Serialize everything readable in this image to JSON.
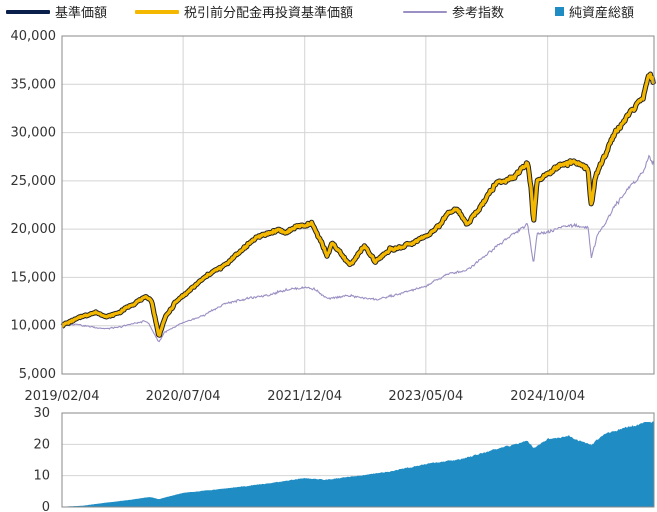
{
  "legend": {
    "base_price": "基準価額",
    "reinvested": "税引前分配金再投資基準価額",
    "reference": "参考指数",
    "net_assets": "純資産総額"
  },
  "colors": {
    "base_price": "#0b1f4d",
    "reinvested": "#f5b800",
    "reinvested_outline": "#222222",
    "reference": "#9b8fc3",
    "net_assets": "#1f8dc4",
    "grid": "#d4d4d4",
    "axis": "#888888"
  },
  "chart_data": [
    {
      "type": "line",
      "ylim": [
        5000,
        40000
      ],
      "yticks": [
        "40,000",
        "35,000",
        "30,000",
        "25,000",
        "20,000",
        "15,000",
        "10,000",
        "5,000"
      ],
      "ytick_values": [
        40000,
        35000,
        30000,
        25000,
        20000,
        15000,
        10000,
        5000
      ],
      "x_range": [
        "2019-02-04",
        "2025-12-31"
      ],
      "xticks": [
        {
          "label": "2019/02/04",
          "date": "2019-02-04"
        },
        {
          "label": "2020/07/04",
          "date": "2020-07-04"
        },
        {
          "label": "2021/12/04",
          "date": "2021-12-04"
        },
        {
          "label": "2023/05/04",
          "date": "2023-05-04"
        },
        {
          "label": "2024/10/04",
          "date": "2024-10-04"
        }
      ],
      "grid": true,
      "series": [
        {
          "name": "税引前分配金再投資基準価額",
          "points": [
            [
              "2019-02-04",
              10000
            ],
            [
              "2019-04-01",
              10700
            ],
            [
              "2019-06-01",
              11200
            ],
            [
              "2019-07-01",
              11400
            ],
            [
              "2019-08-15",
              10900
            ],
            [
              "2019-10-01",
              11300
            ],
            [
              "2019-12-01",
              12200
            ],
            [
              "2020-02-01",
              13000
            ],
            [
              "2020-02-20",
              12600
            ],
            [
              "2020-03-23",
              8900
            ],
            [
              "2020-04-15",
              10700
            ],
            [
              "2020-06-01",
              12400
            ],
            [
              "2020-07-04",
              13100
            ],
            [
              "2020-09-01",
              14300
            ],
            [
              "2020-11-01",
              15500
            ],
            [
              "2020-12-31",
              16300
            ],
            [
              "2021-02-15",
              17300
            ],
            [
              "2021-04-01",
              18300
            ],
            [
              "2021-05-15",
              19200
            ],
            [
              "2021-07-01",
              19600
            ],
            [
              "2021-08-15",
              20000
            ],
            [
              "2021-09-15",
              19600
            ],
            [
              "2021-11-01",
              20300
            ],
            [
              "2021-12-15",
              20400
            ],
            [
              "2022-01-01",
              20600
            ],
            [
              "2022-02-15",
              18600
            ],
            [
              "2022-03-08",
              17200
            ],
            [
              "2022-04-01",
              18600
            ],
            [
              "2022-05-15",
              17200
            ],
            [
              "2022-06-15",
              16300
            ],
            [
              "2022-08-15",
              18200
            ],
            [
              "2022-10-01",
              16600
            ],
            [
              "2022-12-01",
              17900
            ],
            [
              "2023-01-15",
              18100
            ],
            [
              "2023-03-15",
              18600
            ],
            [
              "2023-05-04",
              19300
            ],
            [
              "2023-07-01",
              20300
            ],
            [
              "2023-08-01",
              21600
            ],
            [
              "2023-09-15",
              22100
            ],
            [
              "2023-10-27",
              20500
            ],
            [
              "2023-12-15",
              22000
            ],
            [
              "2024-01-15",
              23300
            ],
            [
              "2024-03-01",
              24800
            ],
            [
              "2024-05-15",
              25400
            ],
            [
              "2024-07-10",
              26800
            ],
            [
              "2024-07-25",
              24400
            ],
            [
              "2024-08-05",
              20600
            ],
            [
              "2024-08-20",
              25000
            ],
            [
              "2024-10-04",
              25700
            ],
            [
              "2024-11-15",
              26400
            ],
            [
              "2025-01-01",
              26900
            ],
            [
              "2025-02-15",
              26800
            ],
            [
              "2025-03-25",
              26200
            ],
            [
              "2025-04-08",
              22400
            ],
            [
              "2025-04-25",
              25300
            ],
            [
              "2025-06-01",
              27500
            ],
            [
              "2025-07-15",
              29800
            ],
            [
              "2025-09-01",
              31500
            ],
            [
              "2025-10-15",
              32800
            ],
            [
              "2025-11-15",
              33500
            ],
            [
              "2025-12-10",
              35900
            ],
            [
              "2025-12-31",
              35300
            ]
          ]
        },
        {
          "name": "参考指数",
          "points": [
            [
              "2019-02-04",
              10000
            ],
            [
              "2019-04-01",
              10200
            ],
            [
              "2019-06-01",
              9900
            ],
            [
              "2019-08-15",
              9700
            ],
            [
              "2019-10-01",
              9800
            ],
            [
              "2019-12-01",
              10200
            ],
            [
              "2020-02-01",
              10500
            ],
            [
              "2020-03-23",
              8300
            ],
            [
              "2020-04-15",
              9300
            ],
            [
              "2020-07-04",
              10300
            ],
            [
              "2020-10-01",
              11100
            ],
            [
              "2020-12-31",
              12300
            ],
            [
              "2021-04-01",
              12800
            ],
            [
              "2021-07-01",
              13200
            ],
            [
              "2021-09-15",
              13700
            ],
            [
              "2021-12-04",
              14000
            ],
            [
              "2022-01-15",
              13800
            ],
            [
              "2022-03-08",
              12800
            ],
            [
              "2022-06-15",
              13100
            ],
            [
              "2022-10-01",
              12700
            ],
            [
              "2023-01-15",
              13300
            ],
            [
              "2023-05-04",
              14100
            ],
            [
              "2023-08-01",
              15300
            ],
            [
              "2023-10-27",
              15800
            ],
            [
              "2024-01-15",
              17300
            ],
            [
              "2024-04-01",
              18800
            ],
            [
              "2024-07-10",
              20500
            ],
            [
              "2024-08-05",
              16400
            ],
            [
              "2024-08-20",
              19600
            ],
            [
              "2024-10-04",
              19700
            ],
            [
              "2025-01-01",
              20400
            ],
            [
              "2025-03-25",
              20200
            ],
            [
              "2025-04-08",
              17000
            ],
            [
              "2025-05-01",
              19200
            ],
            [
              "2025-07-15",
              22300
            ],
            [
              "2025-09-15",
              24300
            ],
            [
              "2025-11-15",
              25900
            ],
            [
              "2025-12-10",
              27500
            ],
            [
              "2025-12-31",
              26700
            ]
          ]
        }
      ]
    },
    {
      "type": "area",
      "ylim": [
        0,
        30
      ],
      "yticks": [
        "30",
        "20",
        "10",
        "0"
      ],
      "ytick_values": [
        30,
        20,
        10,
        0
      ],
      "x_range": [
        "2019-02-04",
        "2025-12-31"
      ],
      "grid": true,
      "series": [
        {
          "name": "純資産総額",
          "points": [
            [
              "2019-02-04",
              0.0
            ],
            [
              "2019-05-01",
              0.3
            ],
            [
              "2019-08-01",
              1.2
            ],
            [
              "2019-11-01",
              2.0
            ],
            [
              "2020-02-15",
              3.1
            ],
            [
              "2020-03-23",
              2.4
            ],
            [
              "2020-06-01",
              3.8
            ],
            [
              "2020-07-04",
              4.4
            ],
            [
              "2021-01-01",
              5.8
            ],
            [
              "2021-07-01",
              7.4
            ],
            [
              "2021-12-04",
              9.1
            ],
            [
              "2022-03-08",
              8.6
            ],
            [
              "2022-06-15",
              9.5
            ],
            [
              "2022-12-01",
              11.2
            ],
            [
              "2023-05-04",
              13.6
            ],
            [
              "2023-10-01",
              15.2
            ],
            [
              "2024-03-01",
              18.4
            ],
            [
              "2024-07-10",
              21.0
            ],
            [
              "2024-08-05",
              18.7
            ],
            [
              "2024-10-04",
              21.6
            ],
            [
              "2025-01-01",
              22.5
            ],
            [
              "2025-04-08",
              19.6
            ],
            [
              "2025-06-01",
              23.2
            ],
            [
              "2025-09-01",
              25.3
            ],
            [
              "2025-12-10",
              27.0
            ],
            [
              "2025-12-31",
              27.2
            ]
          ]
        }
      ]
    }
  ]
}
